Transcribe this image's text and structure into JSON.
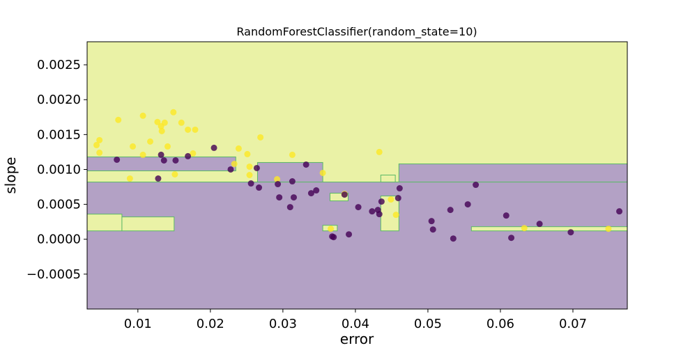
{
  "chart_data": {
    "type": "scatter",
    "title": "RandomForestClassifier(random_state=10)",
    "xlabel": "error",
    "ylabel": "slope",
    "xlim": [
      0.003,
      0.0775
    ],
    "ylim": [
      -0.001,
      0.00283
    ],
    "xticks": [
      {
        "value": 0.01,
        "label": "0.01"
      },
      {
        "value": 0.02,
        "label": "0.02"
      },
      {
        "value": 0.03,
        "label": "0.03"
      },
      {
        "value": 0.04,
        "label": "0.04"
      },
      {
        "value": 0.05,
        "label": "0.05"
      },
      {
        "value": 0.06,
        "label": "0.06"
      },
      {
        "value": 0.07,
        "label": "0.07"
      }
    ],
    "yticks": [
      {
        "value": -0.0005,
        "label": "−0.0005"
      },
      {
        "value": 0.0,
        "label": "0.0000"
      },
      {
        "value": 0.0005,
        "label": "0.0005"
      },
      {
        "value": 0.001,
        "label": "0.0010"
      },
      {
        "value": 0.0015,
        "label": "0.0015"
      },
      {
        "value": 0.002,
        "label": "0.0020"
      },
      {
        "value": 0.0025,
        "label": "0.0025"
      }
    ],
    "grid": false,
    "legend": "none",
    "colors": {
      "class_1": "#fde725",
      "class_0": "#440154",
      "region_1": "#eaf2a6",
      "region_0": "#b3a1c5",
      "contour": "#5ab866"
    },
    "class_regions": [
      {
        "class": 0,
        "x": [
          0.003,
          0.0775
        ],
        "y": [
          -0.001,
          0.00082
        ]
      },
      {
        "class": 0,
        "x": [
          0.003,
          0.0235
        ],
        "y": [
          0.00098,
          0.00118
        ]
      },
      {
        "class": 0,
        "x": [
          0.0265,
          0.0355
        ],
        "y": [
          0.00082,
          0.0011
        ]
      },
      {
        "class": 0,
        "x": [
          0.046,
          0.0775
        ],
        "y": [
          0.00082,
          0.00108
        ]
      },
      {
        "class": 1,
        "x": [
          0.003,
          0.0078
        ],
        "y": [
          0.00012,
          0.00036
        ]
      },
      {
        "class": 1,
        "x": [
          0.0078,
          0.015
        ],
        "y": [
          0.00012,
          0.00032
        ]
      },
      {
        "class": 1,
        "x": [
          0.0365,
          0.039
        ],
        "y": [
          0.00055,
          0.00066
        ]
      },
      {
        "class": 1,
        "x": [
          0.0435,
          0.046
        ],
        "y": [
          0.00012,
          0.00062
        ]
      },
      {
        "class": 1,
        "x": [
          0.0355,
          0.0375
        ],
        "y": [
          0.00012,
          0.0002
        ]
      },
      {
        "class": 1,
        "x": [
          0.056,
          0.0775
        ],
        "y": [
          0.00012,
          0.00018
        ]
      },
      {
        "class": 1,
        "x": [
          0.0435,
          0.0455
        ],
        "y": [
          0.00082,
          0.00092
        ]
      }
    ],
    "series": [
      {
        "class": 1,
        "points": [
          [
            0.0043,
            0.00135
          ],
          [
            0.0047,
            0.00142
          ],
          [
            0.0047,
            0.00124
          ],
          [
            0.0073,
            0.00171
          ],
          [
            0.0089,
            0.00087
          ],
          [
            0.0093,
            0.00133
          ],
          [
            0.0107,
            0.00177
          ],
          [
            0.0107,
            0.00121
          ],
          [
            0.0117,
            0.0014
          ],
          [
            0.0127,
            0.00168
          ],
          [
            0.0132,
            0.00162
          ],
          [
            0.0133,
            0.00155
          ],
          [
            0.0137,
            0.00167
          ],
          [
            0.0141,
            0.00133
          ],
          [
            0.0149,
            0.00182
          ],
          [
            0.0151,
            0.00093
          ],
          [
            0.016,
            0.00167
          ],
          [
            0.0169,
            0.00157
          ],
          [
            0.0176,
            0.00123
          ],
          [
            0.0179,
            0.00157
          ],
          [
            0.0269,
            0.00146
          ],
          [
            0.0239,
            0.0013
          ],
          [
            0.0233,
            0.00108
          ],
          [
            0.0251,
            0.00122
          ],
          [
            0.0254,
            0.00104
          ],
          [
            0.0254,
            0.00092
          ],
          [
            0.0292,
            0.00086
          ],
          [
            0.0313,
            0.00121
          ],
          [
            0.0355,
            0.00095
          ],
          [
            0.0385,
            0.00065
          ],
          [
            0.0433,
            0.00125
          ],
          [
            0.0449,
            0.00057
          ],
          [
            0.0456,
            0.00035
          ],
          [
            0.0366,
            0.00015
          ],
          [
            0.0633,
            0.00016
          ],
          [
            0.0749,
            0.00015
          ]
        ]
      },
      {
        "class": 0,
        "points": [
          [
            0.0071,
            0.00114
          ],
          [
            0.0128,
            0.00087
          ],
          [
            0.0132,
            0.00121
          ],
          [
            0.0136,
            0.00113
          ],
          [
            0.0152,
            0.00113
          ],
          [
            0.0169,
            0.00119
          ],
          [
            0.0205,
            0.00131
          ],
          [
            0.0228,
            0.001
          ],
          [
            0.0256,
            0.0008
          ],
          [
            0.0264,
            0.00102
          ],
          [
            0.0267,
            0.00074
          ],
          [
            0.0293,
            0.00079
          ],
          [
            0.0295,
            0.0006
          ],
          [
            0.031,
            0.00046
          ],
          [
            0.0313,
            0.00083
          ],
          [
            0.0315,
            0.0006
          ],
          [
            0.0332,
            0.00107
          ],
          [
            0.0339,
            0.00066
          ],
          [
            0.0346,
            0.0007
          ],
          [
            0.0368,
            4e-05
          ],
          [
            0.037,
            3e-05
          ],
          [
            0.0385,
            0.00064
          ],
          [
            0.0391,
            7e-05
          ],
          [
            0.0404,
            0.00046
          ],
          [
            0.0423,
            0.0004
          ],
          [
            0.0431,
            0.00042
          ],
          [
            0.0433,
            0.00036
          ],
          [
            0.0436,
            0.00054
          ],
          [
            0.0459,
            0.00059
          ],
          [
            0.0461,
            0.00073
          ],
          [
            0.0505,
            0.00026
          ],
          [
            0.0507,
            0.00014
          ],
          [
            0.0531,
            0.00042
          ],
          [
            0.0535,
            1e-05
          ],
          [
            0.0555,
            0.0005
          ],
          [
            0.0566,
            0.00078
          ],
          [
            0.0608,
            0.00034
          ],
          [
            0.0615,
            2e-05
          ],
          [
            0.0654,
            0.00022
          ],
          [
            0.0697,
            0.0001
          ],
          [
            0.0764,
            0.0004
          ]
        ]
      }
    ]
  }
}
